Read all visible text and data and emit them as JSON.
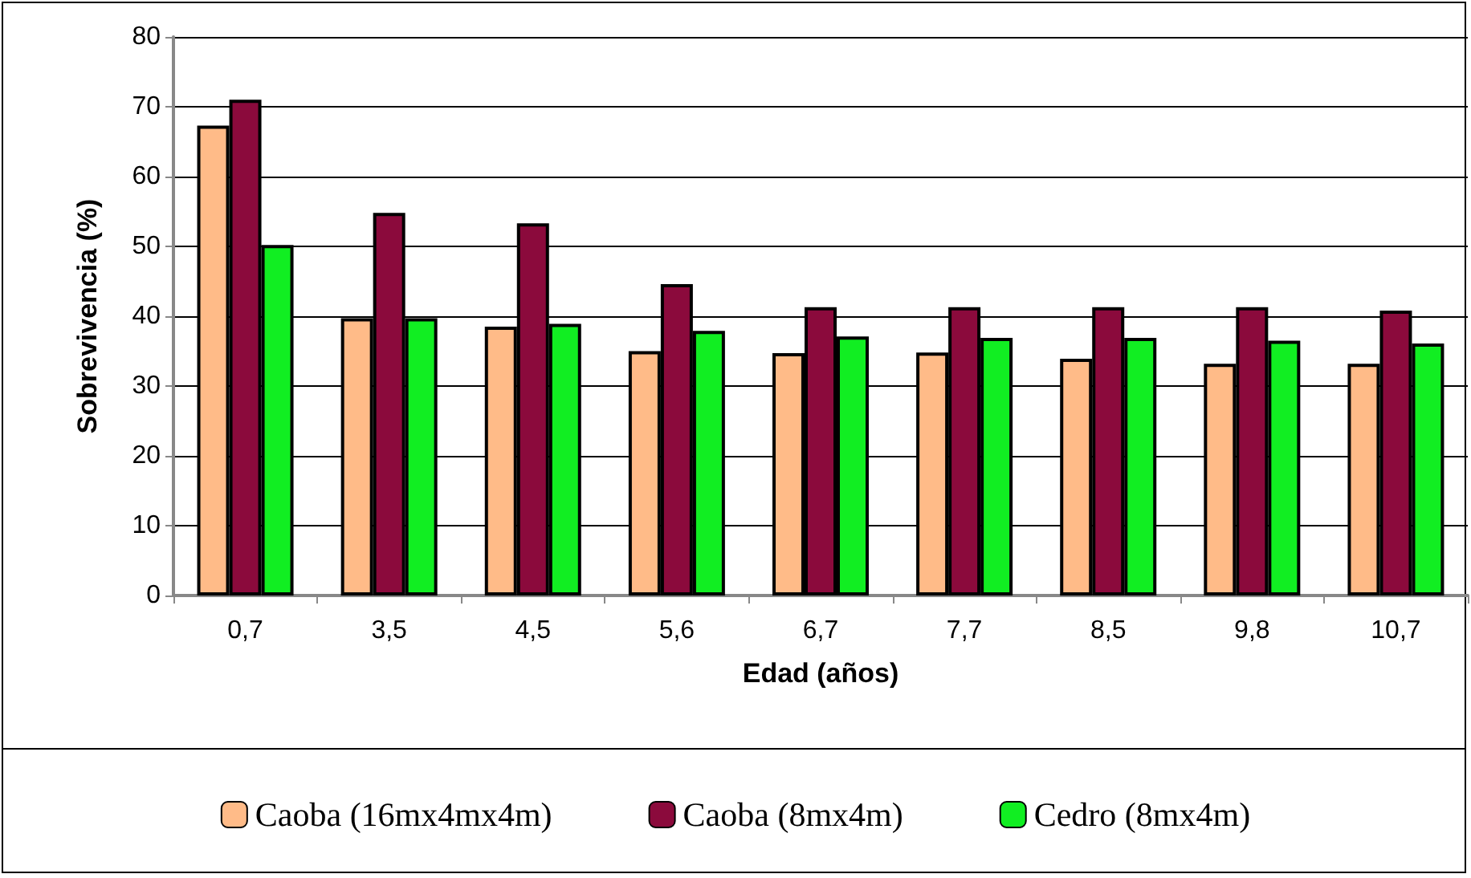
{
  "chart_data": {
    "type": "bar",
    "xlabel": "Edad (años)",
    "ylabel": "Sobrevivencia (%)",
    "categories": [
      "0,7",
      "3,5",
      "4,5",
      "5,6",
      "6,7",
      "7,7",
      "8,5",
      "9,8",
      "10,7"
    ],
    "series": [
      {
        "name": "Caoba (16mx4mx4m)",
        "color": "#ffbb88",
        "values": [
          67.3,
          39.7,
          38.5,
          35.0,
          34.7,
          34.8,
          33.9,
          33.2,
          33.2
        ]
      },
      {
        "name": "Caoba (8mx4m)",
        "color": "#8b0a3c",
        "values": [
          71.0,
          54.8,
          53.3,
          44.6,
          41.3,
          41.3,
          41.3,
          41.3,
          40.8
        ]
      },
      {
        "name": "Cedro (8mx4m)",
        "color": "#11ee22",
        "values": [
          50.2,
          39.7,
          38.9,
          37.9,
          37.1,
          36.9,
          36.9,
          36.5,
          36.1
        ]
      }
    ],
    "ylim": [
      0,
      80
    ],
    "yticks": [
      0,
      10,
      20,
      30,
      40,
      50,
      60,
      70,
      80
    ],
    "grid": "y",
    "legend": "bottom"
  }
}
